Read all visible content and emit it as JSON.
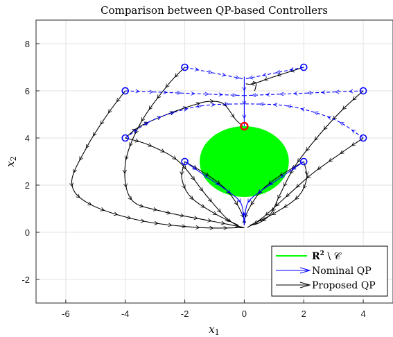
{
  "chart_data": {
    "type": "line",
    "title": "Comparison between QP-based Controllers",
    "xlabel": "x",
    "xlabel_sub": "1",
    "ylabel": "x",
    "ylabel_sub": "2",
    "xlim": [
      -7,
      5
    ],
    "ylim": [
      -3,
      9
    ],
    "xticks": [
      -6,
      -4,
      -2,
      0,
      2,
      4
    ],
    "yticks": [
      -2,
      0,
      2,
      4,
      6,
      8
    ],
    "grid": true,
    "legend_position": "bottom-right",
    "legend": [
      {
        "label_main": "R",
        "label_sup": "2",
        "label_rest": " \\ 𝒞",
        "color": "#00ff00",
        "kind": "line"
      },
      {
        "label_main": "Nominal QP",
        "color": "#0000ff",
        "kind": "arrow"
      },
      {
        "label_main": "Proposed QP",
        "color": "#000000",
        "kind": "arrow"
      }
    ],
    "unsafe_region": {
      "center": [
        0,
        3
      ],
      "radii": [
        1.5,
        1.5
      ],
      "color": "#00ff00"
    },
    "goal_marker": {
      "x": 0,
      "y": 4.5,
      "color": "#ff0000"
    },
    "start_points": [
      {
        "x": -4,
        "y": 6
      },
      {
        "x": -2,
        "y": 7
      },
      {
        "x": 2,
        "y": 7
      },
      {
        "x": 4,
        "y": 6
      },
      {
        "x": -4,
        "y": 4
      },
      {
        "x": 4,
        "y": 4
      },
      {
        "x": -2,
        "y": 3
      },
      {
        "x": 2,
        "y": 3
      }
    ],
    "series": [
      {
        "color": "#0000ff",
        "style": "dashed",
        "x": [
          -4,
          -2,
          0
        ],
        "y": [
          6,
          5.9,
          5.8
        ]
      },
      {
        "color": "#0000ff",
        "style": "dashed",
        "x": [
          4,
          2,
          0
        ],
        "y": [
          6,
          5.9,
          5.8
        ]
      },
      {
        "color": "#0000ff",
        "style": "dashed",
        "x": [
          -2,
          -1,
          -0.2,
          0
        ],
        "y": [
          7,
          6.75,
          6.55,
          6.5
        ]
      },
      {
        "color": "#0000ff",
        "style": "dashed",
        "x": [
          2,
          1,
          0.2,
          0
        ],
        "y": [
          7,
          6.75,
          6.55,
          6.5
        ]
      },
      {
        "color": "#0000ff",
        "style": "dashed",
        "x": [
          -4,
          -3,
          -1.5,
          0
        ],
        "y": [
          4,
          4.8,
          5.35,
          5.45
        ]
      },
      {
        "color": "#0000ff",
        "style": "dashed",
        "x": [
          4,
          3,
          1.5,
          0
        ],
        "y": [
          4,
          4.8,
          5.35,
          5.45
        ]
      },
      {
        "color": "#0000ff",
        "style": "solid",
        "x": [
          0,
          0
        ],
        "y": [
          6.6,
          4.5
        ]
      },
      {
        "color": "#0000ff",
        "style": "solid",
        "x": [
          -2,
          -1.2,
          -0.5,
          -0.1,
          0
        ],
        "y": [
          3,
          2.3,
          1.7,
          1.2,
          0.3
        ]
      },
      {
        "color": "#0000ff",
        "style": "solid",
        "x": [
          2,
          1.2,
          0.5,
          0.1,
          0
        ],
        "y": [
          3,
          2.3,
          1.7,
          1.2,
          0.3
        ]
      },
      {
        "color": "#000000",
        "style": "solid",
        "x": [
          -4,
          -4.6,
          -5.3,
          -5.8,
          -5.2,
          -3.5,
          -1.5,
          0
        ],
        "y": [
          6,
          5,
          3.6,
          2.1,
          1.2,
          0.5,
          0.2,
          0.2
        ]
      },
      {
        "color": "#000000",
        "style": "solid",
        "x": [
          -2,
          -2.6,
          -3.5,
          -4,
          -3.8,
          -2.8,
          -1.2,
          0
        ],
        "y": [
          7,
          6.2,
          4.6,
          2.9,
          1.4,
          0.9,
          0.5,
          0.2
        ]
      },
      {
        "color": "#000000",
        "style": "solid",
        "x": [
          2,
          1,
          0.3,
          0.05
        ],
        "y": [
          7,
          6.6,
          6.3,
          6.3
        ]
      },
      {
        "color": "#000000",
        "style": "solid",
        "x": [
          0.3,
          0.4,
          0.35
        ],
        "y": [
          6.4,
          6.3,
          6.0
        ]
      },
      {
        "color": "#000000",
        "style": "solid",
        "x": [
          4,
          3.3,
          2.5,
          1.7,
          1.2,
          0.9,
          0.5,
          0.2
        ],
        "y": [
          6,
          5.2,
          4.1,
          2.8,
          1.6,
          0.8,
          0.4,
          0.3
        ]
      },
      {
        "color": "#000000",
        "style": "solid",
        "x": [
          -4,
          -3.5,
          -2.6,
          -1.7,
          -1.2,
          -0.7,
          -0.3,
          -0.05
        ],
        "y": [
          4,
          4.5,
          5.0,
          5.4,
          5.55,
          5.45,
          4.8,
          4.5
        ]
      },
      {
        "color": "#000000",
        "style": "solid",
        "x": [
          -4,
          -3.2,
          -2.2,
          -1.3,
          -0.6,
          -0.1
        ],
        "y": [
          4,
          3.7,
          3.0,
          1.6,
          0.6,
          0.2
        ]
      },
      {
        "color": "#000000",
        "style": "solid",
        "x": [
          4,
          3.3,
          2.3,
          1.4,
          0.6,
          0.1
        ],
        "y": [
          4,
          3.4,
          2.5,
          1.5,
          0.6,
          0.2
        ]
      },
      {
        "color": "#000000",
        "style": "solid",
        "x": [
          -2,
          -2.1,
          -1.8,
          -1,
          -0.2
        ],
        "y": [
          3,
          2.3,
          1.5,
          0.8,
          0.3
        ]
      },
      {
        "color": "#000000",
        "style": "solid",
        "x": [
          2,
          2.1,
          1.8,
          1,
          0.2
        ],
        "y": [
          3,
          2.3,
          1.5,
          0.8,
          0.3
        ]
      },
      {
        "color": "#000000",
        "style": "solid",
        "x": [
          -2,
          -1.2,
          -0.6,
          -0.2,
          0.05
        ],
        "y": [
          3,
          2.4,
          1.8,
          1.1,
          0.4
        ]
      },
      {
        "color": "#000000",
        "style": "solid",
        "x": [
          2,
          1.2,
          0.6,
          0.2,
          -0.05
        ],
        "y": [
          3,
          2.4,
          1.8,
          1.1,
          0.4
        ]
      }
    ]
  }
}
